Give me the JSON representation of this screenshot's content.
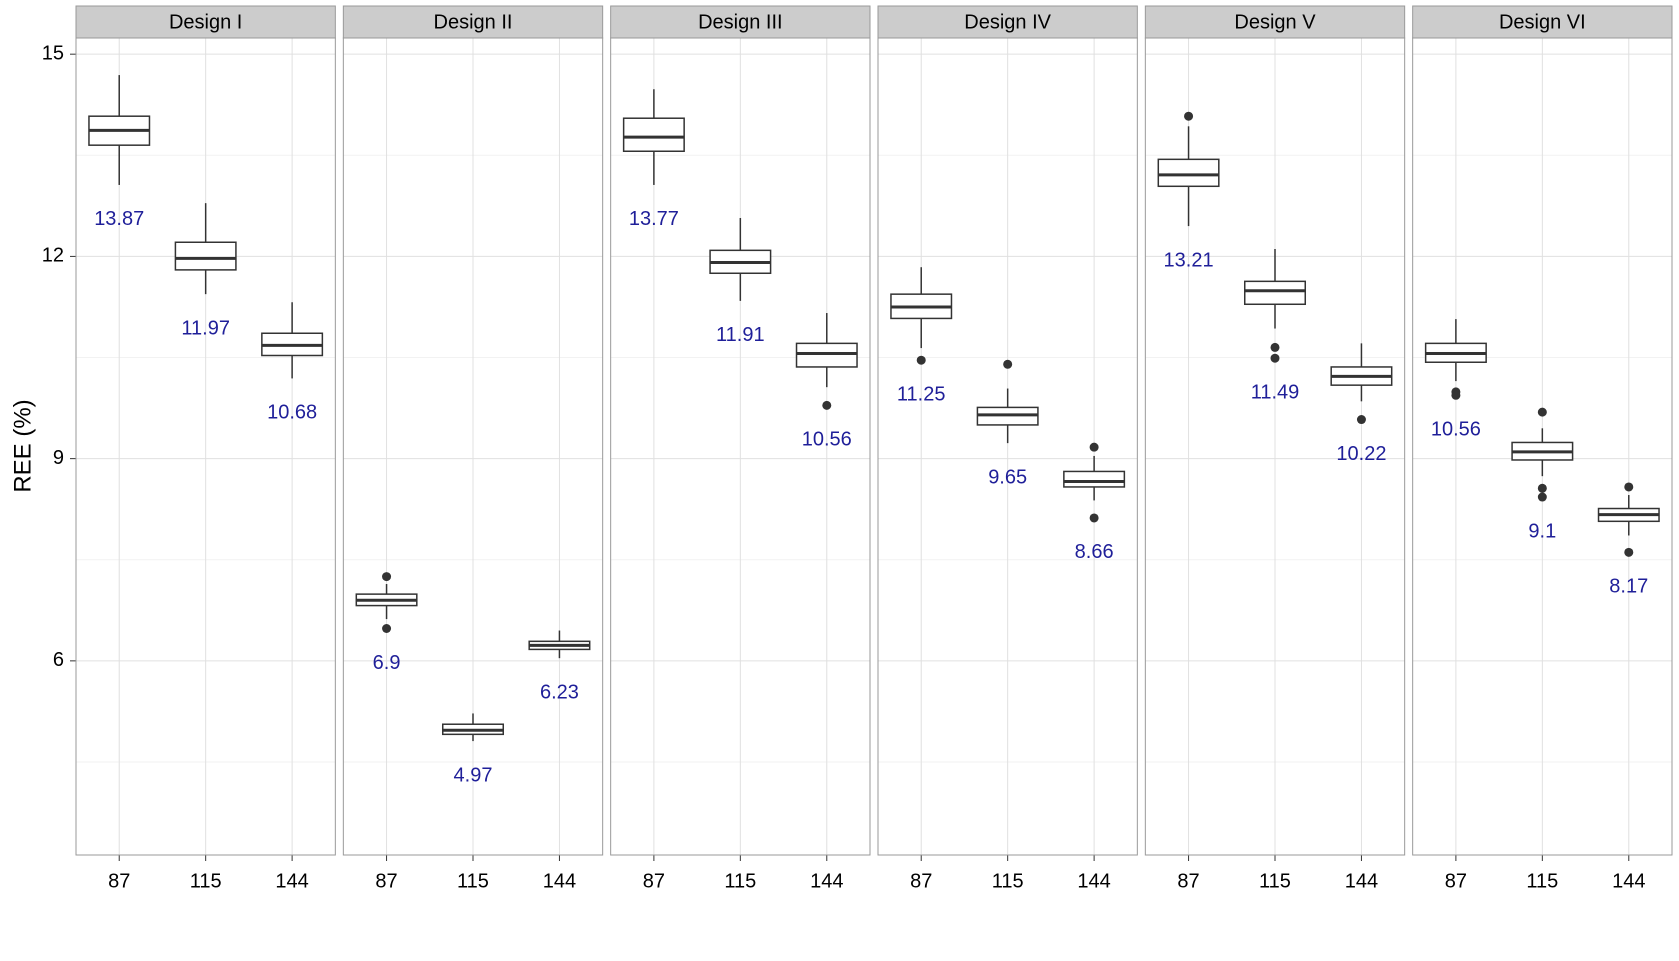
{
  "chart_data": {
    "type": "boxplot",
    "ylabel": "REE (%)",
    "ylim": [
      3.12,
      15.24
    ],
    "yticks": [
      6,
      9,
      12,
      15
    ],
    "yminor": [
      4.5,
      7.5,
      10.5,
      13.5
    ],
    "grid": true,
    "box_color": "#333333",
    "label_color": "#1f1f99",
    "facets": [
      {
        "title": "Design I",
        "categories": [
          "87",
          "115",
          "144"
        ],
        "boxes": [
          {
            "whislo": 13.06,
            "q1": 13.65,
            "med": 13.87,
            "q3": 14.08,
            "whishi": 14.69,
            "fliers": []
          },
          {
            "whislo": 11.44,
            "q1": 11.8,
            "med": 11.97,
            "q3": 12.21,
            "whishi": 12.79,
            "fliers": []
          },
          {
            "whislo": 10.19,
            "q1": 10.53,
            "med": 10.68,
            "q3": 10.86,
            "whishi": 11.32,
            "fliers": []
          }
        ]
      },
      {
        "title": "Design II",
        "categories": [
          "87",
          "115",
          "144"
        ],
        "boxes": [
          {
            "whislo": 6.62,
            "q1": 6.82,
            "med": 6.9,
            "q3": 6.99,
            "whishi": 7.14,
            "fliers": [
              7.25,
              6.48
            ]
          },
          {
            "whislo": 4.81,
            "q1": 4.91,
            "med": 4.97,
            "q3": 5.06,
            "whishi": 5.22,
            "fliers": []
          },
          {
            "whislo": 6.04,
            "q1": 6.17,
            "med": 6.23,
            "q3": 6.29,
            "whishi": 6.45,
            "fliers": []
          }
        ]
      },
      {
        "title": "Design III",
        "categories": [
          "87",
          "115",
          "144"
        ],
        "boxes": [
          {
            "whislo": 13.06,
            "q1": 13.56,
            "med": 13.77,
            "q3": 14.05,
            "whishi": 14.48,
            "fliers": []
          },
          {
            "whislo": 11.34,
            "q1": 11.75,
            "med": 11.91,
            "q3": 12.09,
            "whishi": 12.57,
            "fliers": []
          },
          {
            "whislo": 10.06,
            "q1": 10.36,
            "med": 10.56,
            "q3": 10.71,
            "whishi": 11.16,
            "fliers": [
              9.79
            ]
          }
        ]
      },
      {
        "title": "Design IV",
        "categories": [
          "87",
          "115",
          "144"
        ],
        "boxes": [
          {
            "whislo": 10.64,
            "q1": 11.08,
            "med": 11.25,
            "q3": 11.44,
            "whishi": 11.84,
            "fliers": [
              10.46
            ]
          },
          {
            "whislo": 9.23,
            "q1": 9.5,
            "med": 9.65,
            "q3": 9.76,
            "whishi": 10.04,
            "fliers": [
              10.4
            ]
          },
          {
            "whislo": 8.38,
            "q1": 8.58,
            "med": 8.66,
            "q3": 8.81,
            "whishi": 9.04,
            "fliers": [
              9.17,
              8.12
            ]
          }
        ]
      },
      {
        "title": "Design V",
        "categories": [
          "87",
          "115",
          "144"
        ],
        "boxes": [
          {
            "whislo": 12.45,
            "q1": 13.04,
            "med": 13.21,
            "q3": 13.44,
            "whishi": 13.93,
            "fliers": [
              14.08
            ]
          },
          {
            "whislo": 10.93,
            "q1": 11.29,
            "med": 11.49,
            "q3": 11.63,
            "whishi": 12.11,
            "fliers": [
              10.65,
              10.49
            ]
          },
          {
            "whislo": 9.85,
            "q1": 10.09,
            "med": 10.22,
            "q3": 10.36,
            "whishi": 10.71,
            "fliers": [
              9.58
            ]
          }
        ]
      },
      {
        "title": "Design VI",
        "categories": [
          "87",
          "115",
          "144"
        ],
        "boxes": [
          {
            "whislo": 10.15,
            "q1": 10.43,
            "med": 10.56,
            "q3": 10.71,
            "whishi": 11.07,
            "fliers": [
              9.99,
              9.94
            ]
          },
          {
            "whislo": 8.74,
            "q1": 8.98,
            "med": 9.1,
            "q3": 9.24,
            "whishi": 9.45,
            "fliers": [
              9.69,
              8.56,
              8.43
            ]
          },
          {
            "whislo": 7.86,
            "q1": 8.07,
            "med": 8.17,
            "q3": 8.26,
            "whishi": 8.46,
            "fliers": [
              8.58,
              7.61
            ]
          }
        ]
      }
    ]
  }
}
